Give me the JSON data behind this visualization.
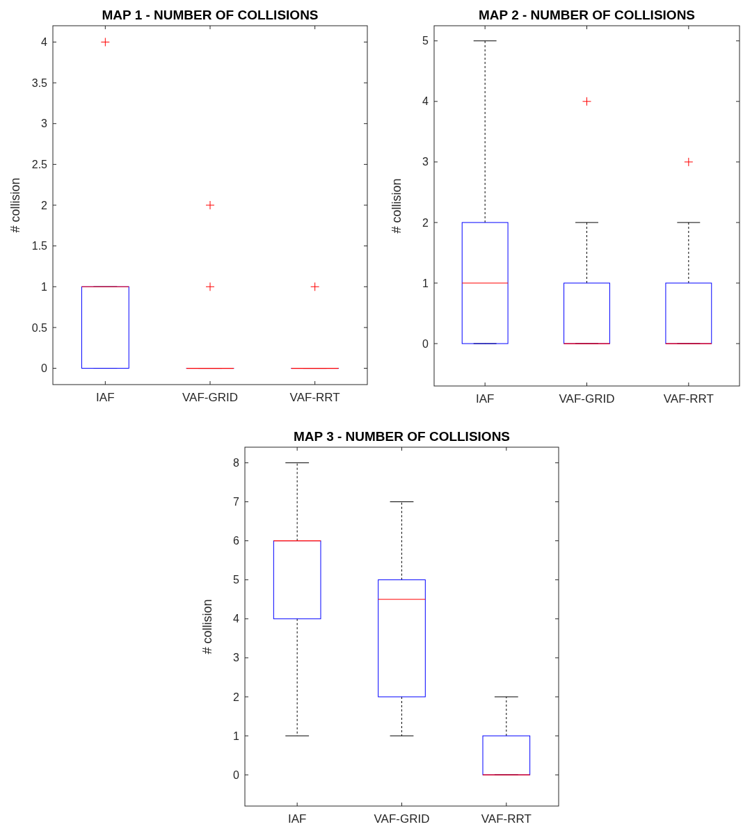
{
  "chart_data": [
    {
      "type": "box",
      "title": "MAP 1 - NUMBER OF COLLISIONS",
      "ylabel": "# collision",
      "categories": [
        "IAF",
        "VAF-GRID",
        "VAF-RRT"
      ],
      "ylim": [
        -0.2,
        4.2
      ],
      "yticks": [
        0,
        0.5,
        1,
        1.5,
        2,
        2.5,
        3,
        3.5,
        4
      ],
      "marker": "cross",
      "series": [
        {
          "color": "#0000ff",
          "boxes": [
            {
              "low": 0,
              "q1": 0,
              "median": 1,
              "q3": 1,
              "high": 1,
              "outliers": [
                4
              ]
            },
            {
              "low": 0,
              "q1": 0,
              "median": 0,
              "q3": 0,
              "high": 0,
              "outliers": [
                1,
                2
              ]
            },
            {
              "low": 0,
              "q1": 0,
              "median": 0,
              "q3": 0,
              "high": 0,
              "outliers": [
                1
              ]
            }
          ]
        }
      ]
    },
    {
      "type": "box",
      "title": "MAP 2 - NUMBER OF COLLISIONS",
      "ylabel": "# collision",
      "categories": [
        "IAF",
        "VAF-GRID",
        "VAF-RRT"
      ],
      "ylim": [
        -0.7,
        5.25
      ],
      "yticks": [
        0,
        1,
        2,
        3,
        4,
        5
      ],
      "marker": "cross",
      "series": [
        {
          "color": "#0000ff",
          "boxes": [
            {
              "low": 0,
              "q1": 0,
              "median": 1,
              "q3": 2,
              "high": 5
            },
            {
              "low": 0,
              "q1": 0,
              "median": 0,
              "q3": 1,
              "high": 2,
              "outliers": [
                4
              ]
            },
            {
              "low": 0,
              "q1": 0,
              "median": 0,
              "q3": 1,
              "high": 2,
              "outliers": [
                3
              ]
            }
          ]
        }
      ]
    },
    {
      "type": "box",
      "title": "MAP 3 - NUMBER OF COLLISIONS",
      "ylabel": "# collision",
      "categories": [
        "IAF",
        "VAF-GRID",
        "VAF-RRT"
      ],
      "ylim": [
        -0.8,
        8.4
      ],
      "yticks": [
        0,
        1,
        2,
        3,
        4,
        5,
        6,
        7,
        8
      ],
      "series": [
        {
          "color": "#0000ff",
          "boxes": [
            {
              "low": 1,
              "q1": 4,
              "median": 6,
              "q3": 6,
              "high": 8
            },
            {
              "low": 1,
              "q1": 2,
              "median": 4.5,
              "q3": 5,
              "high": 7
            },
            {
              "low": 0,
              "q1": 0,
              "median": 0,
              "q3": 1,
              "high": 2
            }
          ]
        }
      ]
    }
  ]
}
